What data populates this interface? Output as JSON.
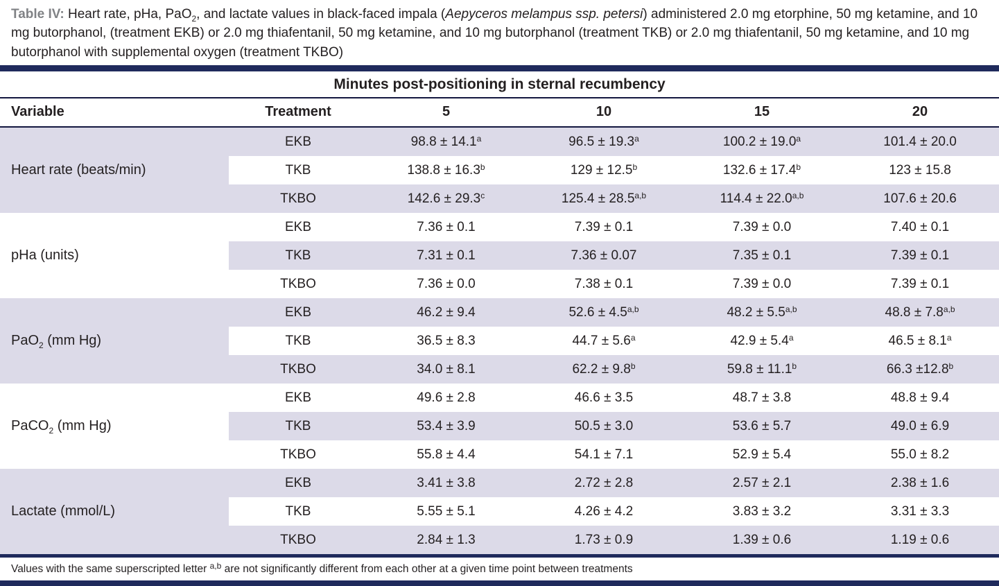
{
  "colors": {
    "navy_bar": "#1f2a5c",
    "rule": "#13173f",
    "row_lavender": "#dcdae8",
    "caption_label_gray": "#808285",
    "text": "#231f20"
  },
  "caption": {
    "segments": [
      {
        "text": "Table IV: ",
        "style": "bold-gray"
      },
      {
        "text": "Heart rate, pHa, PaO",
        "style": "plain"
      },
      {
        "text": "2",
        "style": "sub"
      },
      {
        "text": ", and lactate values in black-faced impala (",
        "style": "plain"
      },
      {
        "text": "Aepyceros melampus ssp. petersi",
        "style": "italic"
      },
      {
        "text": ") administered 2.0 mg etorphine, 50 mg ketamine, and 10 mg butorphanol, (treatment EKB) or 2.0 mg thiafentanil, 50 mg ketamine, and 10 mg butorphanol (treatment TKB) or 2.0 mg thiafentanil, 50 mg ketamine, and 10 mg butorphanol with supplemental oxygen (treatment TKBO)",
        "style": "plain"
      }
    ]
  },
  "table": {
    "span_header": "Minutes post-positioning in sternal recumbency",
    "columns": [
      "Variable",
      "Treatment",
      "5",
      "10",
      "15",
      "20"
    ],
    "groups": [
      {
        "variable": {
          "main": "Heart rate (beats/min)",
          "sub": "",
          "rest": ""
        },
        "shade": "lavender",
        "rows": [
          {
            "treatment": "EKB",
            "shade": "lavender",
            "values": [
              {
                "v": "98.8 ± 14.1",
                "sup": "a"
              },
              {
                "v": "96.5 ± 19.3",
                "sup": "a"
              },
              {
                "v": "100.2 ± 19.0",
                "sup": "a"
              },
              {
                "v": "101.4 ± 20.0",
                "sup": ""
              }
            ]
          },
          {
            "treatment": "TKB",
            "shade": "white",
            "values": [
              {
                "v": "138.8 ± 16.3",
                "sup": "b"
              },
              {
                "v": "129 ± 12.5",
                "sup": "b"
              },
              {
                "v": "132.6 ± 17.4",
                "sup": "b"
              },
              {
                "v": "123 ± 15.8",
                "sup": ""
              }
            ]
          },
          {
            "treatment": "TKBO",
            "shade": "lavender",
            "values": [
              {
                "v": "142.6 ± 29.3",
                "sup": "c"
              },
              {
                "v": "125.4 ± 28.5",
                "sup": "a,b"
              },
              {
                "v": "114.4 ± 22.0",
                "sup": "a,b"
              },
              {
                "v": "107.6 ± 20.6",
                "sup": ""
              }
            ]
          }
        ]
      },
      {
        "variable": {
          "main": "pHa (units)",
          "sub": "",
          "rest": ""
        },
        "shade": "white",
        "rows": [
          {
            "treatment": "EKB",
            "shade": "white",
            "values": [
              {
                "v": "7.36 ± 0.1",
                "sup": ""
              },
              {
                "v": "7.39 ± 0.1",
                "sup": ""
              },
              {
                "v": "7.39 ± 0.0",
                "sup": ""
              },
              {
                "v": "7.40 ± 0.1",
                "sup": ""
              }
            ]
          },
          {
            "treatment": "TKB",
            "shade": "lavender",
            "values": [
              {
                "v": "7.31 ± 0.1",
                "sup": ""
              },
              {
                "v": "7.36 ± 0.07",
                "sup": ""
              },
              {
                "v": "7.35 ± 0.1",
                "sup": ""
              },
              {
                "v": "7.39 ± 0.1",
                "sup": ""
              }
            ]
          },
          {
            "treatment": "TKBO",
            "shade": "white",
            "values": [
              {
                "v": "7.36 ± 0.0",
                "sup": ""
              },
              {
                "v": "7.38 ± 0.1",
                "sup": ""
              },
              {
                "v": "7.39 ± 0.0",
                "sup": ""
              },
              {
                "v": "7.39 ± 0.1",
                "sup": ""
              }
            ]
          }
        ]
      },
      {
        "variable": {
          "main": "PaO",
          "sub": "2",
          "rest": " (mm Hg)"
        },
        "shade": "lavender",
        "rows": [
          {
            "treatment": "EKB",
            "shade": "lavender",
            "values": [
              {
                "v": "46.2 ± 9.4",
                "sup": ""
              },
              {
                "v": "52.6 ± 4.5",
                "sup": "a,b"
              },
              {
                "v": "48.2 ± 5.5",
                "sup": "a,b"
              },
              {
                "v": "48.8 ± 7.8",
                "sup": "a,b"
              }
            ]
          },
          {
            "treatment": "TKB",
            "shade": "white",
            "values": [
              {
                "v": "36.5 ± 8.3",
                "sup": ""
              },
              {
                "v": "44.7 ± 5.6",
                "sup": "a"
              },
              {
                "v": "42.9 ± 5.4",
                "sup": "a"
              },
              {
                "v": "46.5 ± 8.1",
                "sup": "a"
              }
            ]
          },
          {
            "treatment": "TKBO",
            "shade": "lavender",
            "values": [
              {
                "v": "34.0 ± 8.1",
                "sup": ""
              },
              {
                "v": "62.2 ± 9.8",
                "sup": "b"
              },
              {
                "v": "59.8 ± 11.1",
                "sup": "b"
              },
              {
                "v": "66.3 ±12.8",
                "sup": "b"
              }
            ]
          }
        ]
      },
      {
        "variable": {
          "main": "PaCO",
          "sub": "2",
          "rest": " (mm Hg)"
        },
        "shade": "white",
        "rows": [
          {
            "treatment": "EKB",
            "shade": "white",
            "values": [
              {
                "v": "49.6 ± 2.8",
                "sup": ""
              },
              {
                "v": "46.6 ± 3.5",
                "sup": ""
              },
              {
                "v": "48.7 ± 3.8",
                "sup": ""
              },
              {
                "v": "48.8 ± 9.4",
                "sup": ""
              }
            ]
          },
          {
            "treatment": "TKB",
            "shade": "lavender",
            "values": [
              {
                "v": "53.4 ± 3.9",
                "sup": ""
              },
              {
                "v": "50.5 ± 3.0",
                "sup": ""
              },
              {
                "v": "53.6 ± 5.7",
                "sup": ""
              },
              {
                "v": "49.0 ± 6.9",
                "sup": ""
              }
            ]
          },
          {
            "treatment": "TKBO",
            "shade": "white",
            "values": [
              {
                "v": "55.8 ± 4.4",
                "sup": ""
              },
              {
                "v": "54.1 ± 7.1",
                "sup": ""
              },
              {
                "v": "52.9 ± 5.4",
                "sup": ""
              },
              {
                "v": "55.0 ± 8.2",
                "sup": ""
              }
            ]
          }
        ]
      },
      {
        "variable": {
          "main": "Lactate (mmol/L)",
          "sub": "",
          "rest": ""
        },
        "shade": "lavender",
        "rows": [
          {
            "treatment": "EKB",
            "shade": "lavender",
            "values": [
              {
                "v": "3.41 ± 3.8",
                "sup": ""
              },
              {
                "v": "2.72 ± 2.8",
                "sup": ""
              },
              {
                "v": "2.57 ± 2.1",
                "sup": ""
              },
              {
                "v": "2.38 ± 1.6",
                "sup": ""
              }
            ]
          },
          {
            "treatment": "TKB",
            "shade": "white",
            "values": [
              {
                "v": "5.55 ± 5.1",
                "sup": ""
              },
              {
                "v": "4.26 ± 4.2",
                "sup": ""
              },
              {
                "v": "3.83 ± 3.2",
                "sup": ""
              },
              {
                "v": "3.31 ± 3.3",
                "sup": ""
              }
            ]
          },
          {
            "treatment": "TKBO",
            "shade": "lavender",
            "values": [
              {
                "v": "2.84 ± 1.3",
                "sup": ""
              },
              {
                "v": "1.73 ± 0.9",
                "sup": ""
              },
              {
                "v": "1.39 ± 0.6",
                "sup": ""
              },
              {
                "v": "1.19 ± 0.6",
                "sup": ""
              }
            ]
          }
        ]
      }
    ]
  },
  "footnote": {
    "segments": [
      {
        "text": "Values with the same superscripted letter ",
        "style": "plain"
      },
      {
        "text": "a,b",
        "style": "sup"
      },
      {
        "text": " are not significantly different from each other at a given time point between treatments",
        "style": "plain"
      }
    ]
  }
}
